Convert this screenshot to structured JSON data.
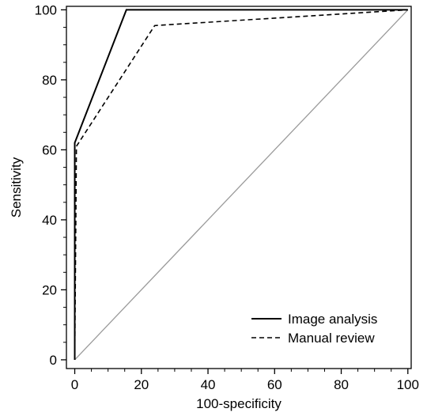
{
  "chart_data": {
    "type": "line",
    "title": "",
    "xlabel": "100-specificity",
    "ylabel": "Sensitivity",
    "xlim": [
      0,
      100
    ],
    "ylim": [
      0,
      100
    ],
    "grid": false,
    "legend_position": "bottom-right",
    "x_ticks": [
      0,
      20,
      40,
      60,
      80,
      100
    ],
    "y_ticks": [
      0,
      20,
      40,
      60,
      80,
      100
    ],
    "x_tick_labels": [
      "0",
      "20",
      "40",
      "60",
      "80",
      "100"
    ],
    "y_tick_labels": [
      "0",
      "20",
      "40",
      "60",
      "80",
      "100"
    ],
    "series": [
      {
        "name": "Image analysis",
        "style": "solid",
        "color": "#000000",
        "x": [
          0,
          0,
          15.5,
          100
        ],
        "y": [
          0,
          62,
          100,
          100
        ]
      },
      {
        "name": "Manual review",
        "style": "dashed",
        "color": "#000000",
        "x": [
          0,
          0.5,
          24,
          100
        ],
        "y": [
          0,
          61,
          95.5,
          100
        ]
      },
      {
        "style": "reference",
        "color": "#9a9a9a",
        "x": [
          0,
          100
        ],
        "y": [
          0,
          100
        ]
      }
    ]
  }
}
